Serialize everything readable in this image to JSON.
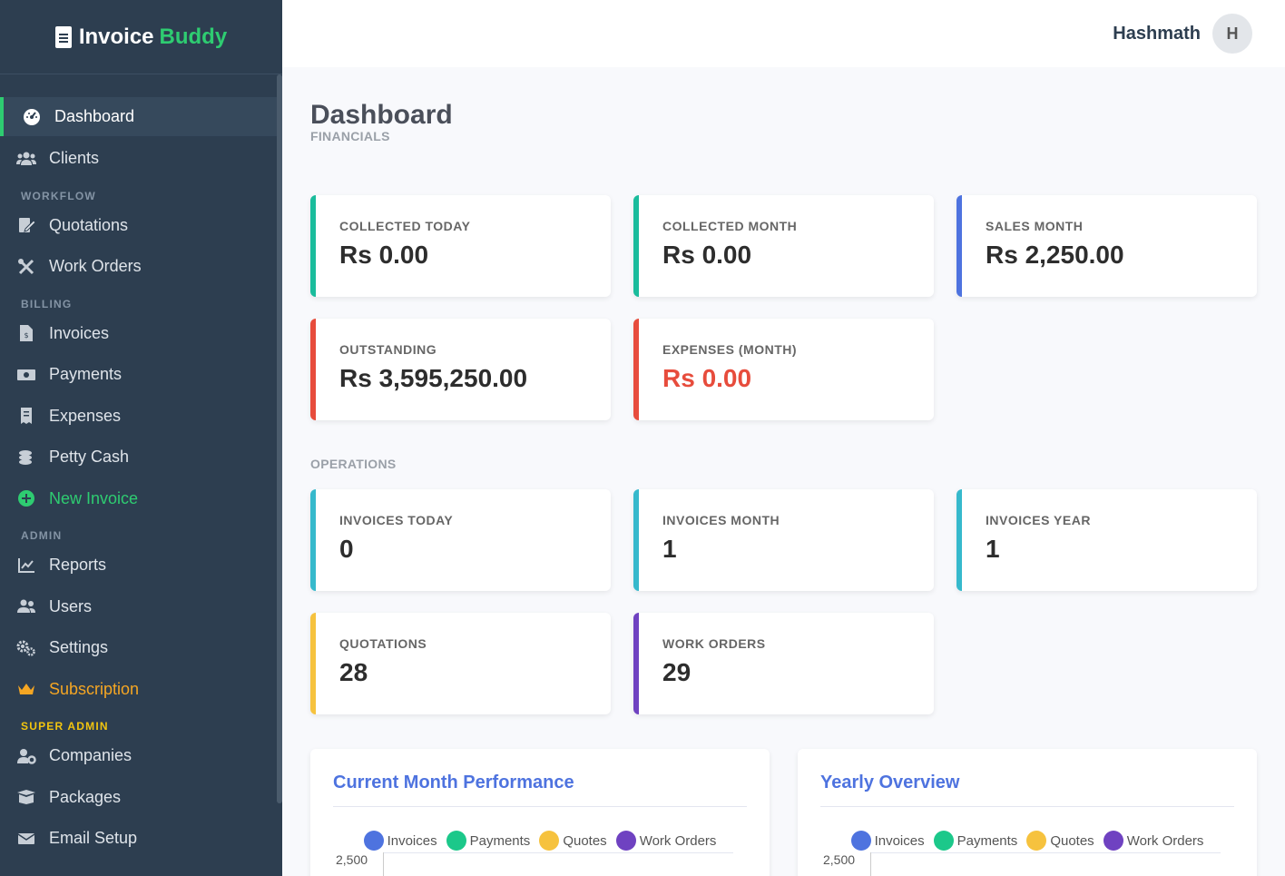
{
  "brand": {
    "name_main": "Invoice",
    "name_accent": "Buddy"
  },
  "sidebar": {
    "items": [
      {
        "label": "Dashboard",
        "icon": "gauge-icon"
      },
      {
        "label": "Clients",
        "icon": "users-icon"
      }
    ],
    "workflow_label": "WORKFLOW",
    "workflow": [
      {
        "label": "Quotations",
        "icon": "file-signature-icon"
      },
      {
        "label": "Work Orders",
        "icon": "tools-icon"
      }
    ],
    "billing_label": "BILLING",
    "billing": [
      {
        "label": "Invoices",
        "icon": "invoice-icon"
      },
      {
        "label": "Payments",
        "icon": "money-bill-icon"
      },
      {
        "label": "Expenses",
        "icon": "receipt-icon"
      },
      {
        "label": "Petty Cash",
        "icon": "coins-icon"
      },
      {
        "label": "New Invoice",
        "icon": "plus-circle-icon"
      }
    ],
    "admin_label": "ADMIN",
    "admin": [
      {
        "label": "Reports",
        "icon": "chart-line-icon"
      },
      {
        "label": "Users",
        "icon": "user-group-icon"
      },
      {
        "label": "Settings",
        "icon": "cogs-icon"
      },
      {
        "label": "Subscription",
        "icon": "crown-icon"
      }
    ],
    "super_admin_label": "SUPER ADMIN",
    "super_admin": [
      {
        "label": "Companies",
        "icon": "user-cog-icon"
      },
      {
        "label": "Packages",
        "icon": "box-open-icon"
      },
      {
        "label": "Email Setup",
        "icon": "envelope-icon"
      }
    ]
  },
  "topbar": {
    "user_name": "Hashmath",
    "avatar_initial": "H"
  },
  "main": {
    "title": "Dashboard",
    "financials_label": "FINANCIALS",
    "financials": [
      {
        "label": "COLLECTED TODAY",
        "value": "Rs 0.00"
      },
      {
        "label": "COLLECTED MONTH",
        "value": "Rs 0.00"
      },
      {
        "label": "SALES MONTH",
        "value": "Rs 2,250.00"
      },
      {
        "label": "OUTSTANDING",
        "value": "Rs 3,595,250.00"
      },
      {
        "label": "EXPENSES (MONTH)",
        "value": "Rs 0.00"
      }
    ],
    "operations_label": "OPERATIONS",
    "operations": [
      {
        "label": "INVOICES TODAY",
        "value": "0"
      },
      {
        "label": "INVOICES MONTH",
        "value": "1"
      },
      {
        "label": "INVOICES YEAR",
        "value": "1"
      },
      {
        "label": "QUOTATIONS",
        "value": "28"
      },
      {
        "label": "WORK ORDERS",
        "value": "29"
      }
    ]
  },
  "colors": {
    "sidebar_bg": "#2d3e50",
    "accent_green": "#2ecc71",
    "accent_blue": "#4e73df",
    "accent_red": "#e74c3c",
    "accent_cyan": "#36b9cc",
    "accent_yellow": "#f6c23e",
    "accent_purple": "#6f42c1",
    "gold": "#f5a623"
  },
  "chart_data": [
    {
      "type": "bar",
      "title": "Current Month Performance",
      "series": [
        {
          "name": "Invoices",
          "color": "#4e73df"
        },
        {
          "name": "Payments",
          "color": "#1cc88a"
        },
        {
          "name": "Quotes",
          "color": "#f6c23e"
        },
        {
          "name": "Work Orders",
          "color": "#6f42c1"
        }
      ],
      "y_ticks": [
        "2,500"
      ]
    },
    {
      "type": "bar",
      "title": "Yearly Overview",
      "series": [
        {
          "name": "Invoices",
          "color": "#4e73df"
        },
        {
          "name": "Payments",
          "color": "#1cc88a"
        },
        {
          "name": "Quotes",
          "color": "#f6c23e"
        },
        {
          "name": "Work Orders",
          "color": "#6f42c1"
        }
      ],
      "y_ticks": [
        "2,500"
      ]
    }
  ]
}
